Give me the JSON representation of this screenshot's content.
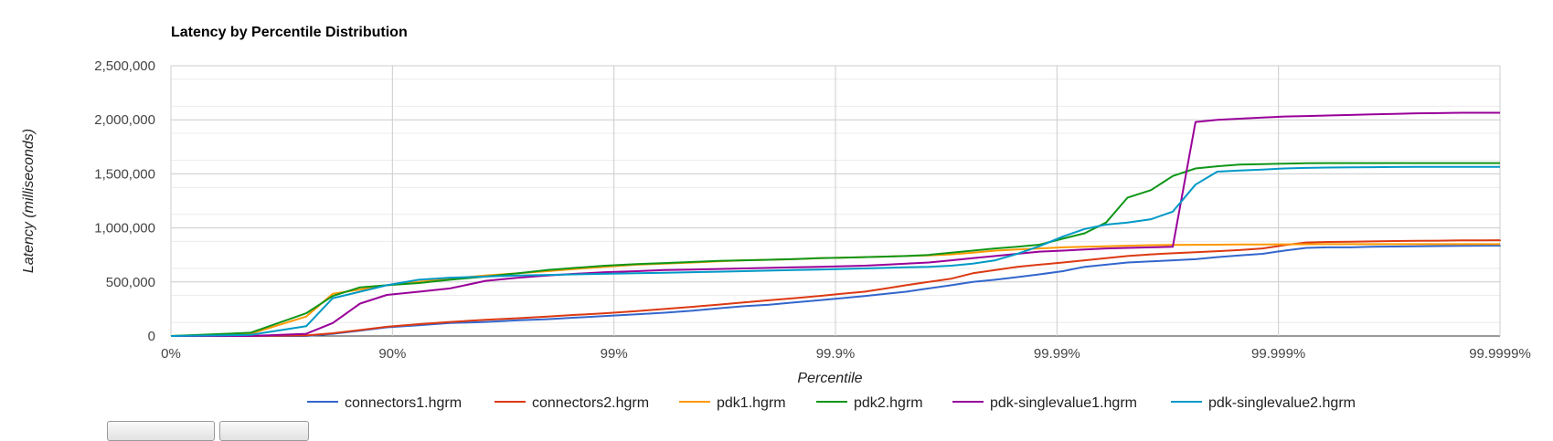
{
  "chart_data": {
    "type": "line",
    "title": "Latency by Percentile Distribution",
    "xlabel": "Percentile",
    "ylabel": "Latency (milliseconds)",
    "x_scale": "log-percentile",
    "x_tick_labels": [
      "0%",
      "90%",
      "99%",
      "99.9%",
      "99.99%",
      "99.999%",
      "99.9999%"
    ],
    "y_tick_labels": [
      "0",
      "500,000",
      "1,000,000",
      "1,500,000",
      "2,000,000",
      "2,500,000"
    ],
    "ylim": [
      0,
      2500000
    ],
    "grid": true,
    "legend_position": "bottom",
    "x": [
      "0%",
      "56.3%",
      "75.5%",
      "81.4%",
      "86.0%",
      "89.4%",
      "92.4%",
      "94.5%",
      "96.2%",
      "97.3%",
      "98.0%",
      "98.5%",
      "98.9%",
      "99.21%",
      "99.41%",
      "99.56%",
      "99.66%",
      "99.74%",
      "99.80%",
      "99.846%",
      "99.881%",
      "99.906%",
      "99.926%",
      "99.941%",
      "99.952%",
      "99.962%",
      "99.970%",
      "99.976%",
      "99.981%",
      "99.9849%",
      "99.9880%",
      "99.9906%",
      "99.9925%",
      "99.9940%",
      "99.9952%",
      "99.99624%",
      "99.99700%",
      "99.99763%",
      "99.99811%",
      "99.99850%",
      "99.99882%",
      "99.99906%",
      "99.99925%",
      "99.99940%",
      "99.99953%",
      "99.99962%",
      "99.99970%",
      "99.99976%",
      "99.99981%",
      "99.99985%",
      "99.99988%",
      "99.99990%",
      "99.99992%",
      "99.99994%",
      "99.99995%",
      "99.99996%",
      "99.99997%",
      "99.99998%",
      "99.999981%",
      "99.999985%",
      "99.9999%"
    ],
    "series": [
      {
        "name": "connectors1.hgrm",
        "color": "#3366cc",
        "values": [
          0,
          0,
          0,
          20000,
          50000,
          80000,
          100000,
          120000,
          130000,
          145000,
          155000,
          170000,
          185000,
          200000,
          215000,
          235000,
          255000,
          275000,
          290000,
          310000,
          330000,
          350000,
          370000,
          390000,
          410000,
          440000,
          470000,
          500000,
          520000,
          545000,
          570000,
          600000,
          640000,
          660000,
          680000,
          690000,
          700000,
          710000,
          730000,
          745000,
          760000,
          790000,
          815000,
          820000,
          820000,
          825000,
          828000,
          830000,
          832000,
          834000,
          835000,
          836000,
          837000,
          838000,
          839000,
          840000,
          840000,
          840000,
          840000,
          840000,
          840000
        ]
      },
      {
        "name": "connectors2.hgrm",
        "color": "#dc3912",
        "values": [
          0,
          0,
          5000,
          25000,
          55000,
          85000,
          110000,
          130000,
          150000,
          165000,
          180000,
          195000,
          210000,
          230000,
          250000,
          270000,
          290000,
          310000,
          330000,
          350000,
          370000,
          390000,
          410000,
          440000,
          470000,
          500000,
          530000,
          580000,
          610000,
          640000,
          660000,
          680000,
          700000,
          720000,
          740000,
          755000,
          765000,
          775000,
          785000,
          795000,
          810000,
          840000,
          865000,
          870000,
          872000,
          875000,
          878000,
          880000,
          882000,
          884000,
          885000,
          886000,
          887000,
          888000,
          889000,
          890000,
          890000,
          890000,
          890000,
          890000,
          890000
        ]
      },
      {
        "name": "pdk1.hgrm",
        "color": "#ff9900",
        "values": [
          0,
          20000,
          180000,
          390000,
          430000,
          470000,
          500000,
          530000,
          560000,
          580000,
          600000,
          620000,
          640000,
          660000,
          670000,
          680000,
          690000,
          700000,
          705000,
          710000,
          720000,
          725000,
          730000,
          735000,
          740000,
          745000,
          755000,
          770000,
          790000,
          800000,
          810000,
          820000,
          825000,
          830000,
          835000,
          840000,
          842000,
          844000,
          845000,
          846000,
          847000,
          848000,
          849000,
          850000,
          850000,
          850000,
          850000,
          850000,
          850000,
          850000,
          850000,
          850000,
          850000,
          850000,
          850000,
          850000,
          850000,
          850000,
          850000,
          850000,
          850000
        ]
      },
      {
        "name": "pdk2.hgrm",
        "color": "#109618",
        "values": [
          0,
          30000,
          210000,
          370000,
          450000,
          470000,
          490000,
          520000,
          550000,
          580000,
          610000,
          630000,
          650000,
          665000,
          675000,
          685000,
          695000,
          700000,
          705000,
          712000,
          720000,
          725000,
          730000,
          735000,
          740000,
          750000,
          770000,
          790000,
          810000,
          825000,
          845000,
          900000,
          950000,
          1050000,
          1280000,
          1350000,
          1480000,
          1550000,
          1570000,
          1585000,
          1590000,
          1595000,
          1598000,
          1600000,
          1600000,
          1600000,
          1600000,
          1600000,
          1600000,
          1600000,
          1600000,
          1600000,
          1600000,
          1600000,
          1600000,
          1600000,
          1600000,
          1600000,
          1600000,
          1600000,
          1600000
        ]
      },
      {
        "name": "pdk-singlevalue1.hgrm",
        "color": "#990099",
        "values": [
          0,
          0,
          20000,
          120000,
          300000,
          380000,
          410000,
          440000,
          510000,
          540000,
          560000,
          575000,
          590000,
          600000,
          610000,
          615000,
          620000,
          625000,
          630000,
          635000,
          640000,
          645000,
          650000,
          660000,
          670000,
          680000,
          700000,
          720000,
          740000,
          760000,
          780000,
          790000,
          800000,
          810000,
          815000,
          820000,
          825000,
          1980000,
          2000000,
          2010000,
          2020000,
          2030000,
          2035000,
          2040000,
          2045000,
          2050000,
          2055000,
          2060000,
          2062000,
          2065000,
          2065000,
          2065000,
          2065000,
          2065000,
          2065000,
          2065000,
          2065000,
          2065000,
          2065000,
          2065000,
          2065000
        ]
      },
      {
        "name": "pdk-singlevalue2.hgrm",
        "color": "#0099c6",
        "values": [
          0,
          10000,
          90000,
          350000,
          410000,
          470000,
          520000,
          540000,
          550000,
          560000,
          565000,
          570000,
          575000,
          580000,
          585000,
          590000,
          595000,
          600000,
          605000,
          610000,
          615000,
          620000,
          625000,
          630000,
          635000,
          640000,
          650000,
          670000,
          700000,
          760000,
          830000,
          920000,
          990000,
          1030000,
          1050000,
          1080000,
          1150000,
          1400000,
          1520000,
          1530000,
          1540000,
          1550000,
          1555000,
          1558000,
          1560000,
          1562000,
          1563000,
          1564000,
          1565000,
          1565000,
          1565000,
          1565000,
          1565000,
          1565000,
          1565000,
          1565000,
          1565000,
          1565000,
          1565000,
          1565000,
          1565000
        ]
      }
    ]
  }
}
